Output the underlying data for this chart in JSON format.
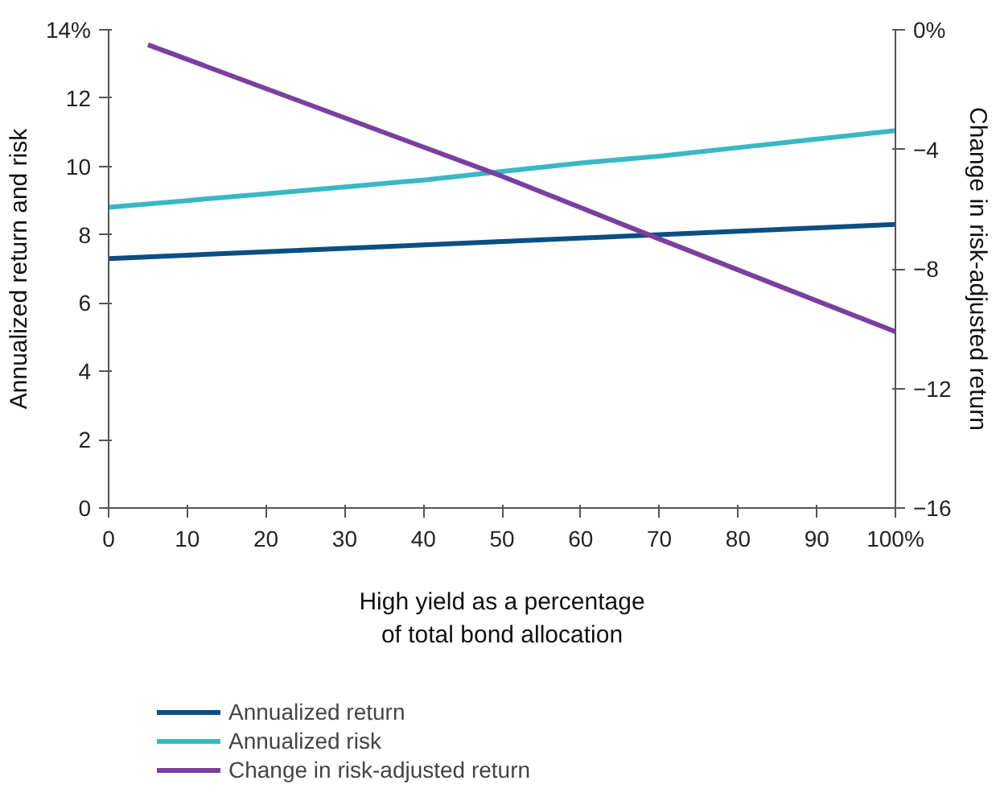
{
  "chart_data": {
    "type": "line",
    "xlabel": "High yield as a percentage\nof total bond allocation",
    "ylabel": "Annualized return and risk",
    "y2label": "Change in risk-adjusted return",
    "x": [
      0,
      10,
      20,
      30,
      40,
      50,
      60,
      70,
      80,
      90,
      100
    ],
    "series": [
      {
        "name": "Annualized return",
        "color": "#0b4f82",
        "values": [
          7.3,
          7.4,
          7.5,
          7.6,
          7.7,
          7.8,
          7.9,
          8.0,
          8.1,
          8.2,
          8.3
        ]
      },
      {
        "name": "Annualized risk",
        "color": "#3ab7c4",
        "values": [
          8.8,
          9.0,
          9.2,
          9.4,
          9.6,
          9.85,
          10.1,
          10.3,
          10.55,
          10.8,
          11.05
        ]
      },
      {
        "name": "Change in risk-adjusted return",
        "color": "#7b3f9e",
        "axis": "y2",
        "x": [
          5,
          50,
          70,
          100
        ],
        "values": [
          -0.5,
          -4.9,
          -7.0,
          -10.1
        ]
      }
    ],
    "xlim": [
      0,
      100
    ],
    "xticks": [
      0,
      10,
      20,
      30,
      40,
      50,
      60,
      70,
      80,
      90,
      {
        "value": 100,
        "label": "100%"
      }
    ],
    "ylim": [
      0,
      14
    ],
    "yticks": [
      0,
      2,
      4,
      6,
      8,
      10,
      12,
      {
        "value": 14,
        "label": "14%"
      }
    ],
    "y2lim": [
      -16,
      0
    ],
    "y2ticks": [
      {
        "value": -16,
        "label": "−16"
      },
      {
        "value": -12,
        "label": "−12"
      },
      {
        "value": -8,
        "label": "−8"
      },
      {
        "value": -4,
        "label": "−4"
      },
      {
        "value": 0,
        "label": "0%"
      }
    ],
    "grid": false,
    "legend": "bottom",
    "marker": "none",
    "line_style": "solid"
  }
}
